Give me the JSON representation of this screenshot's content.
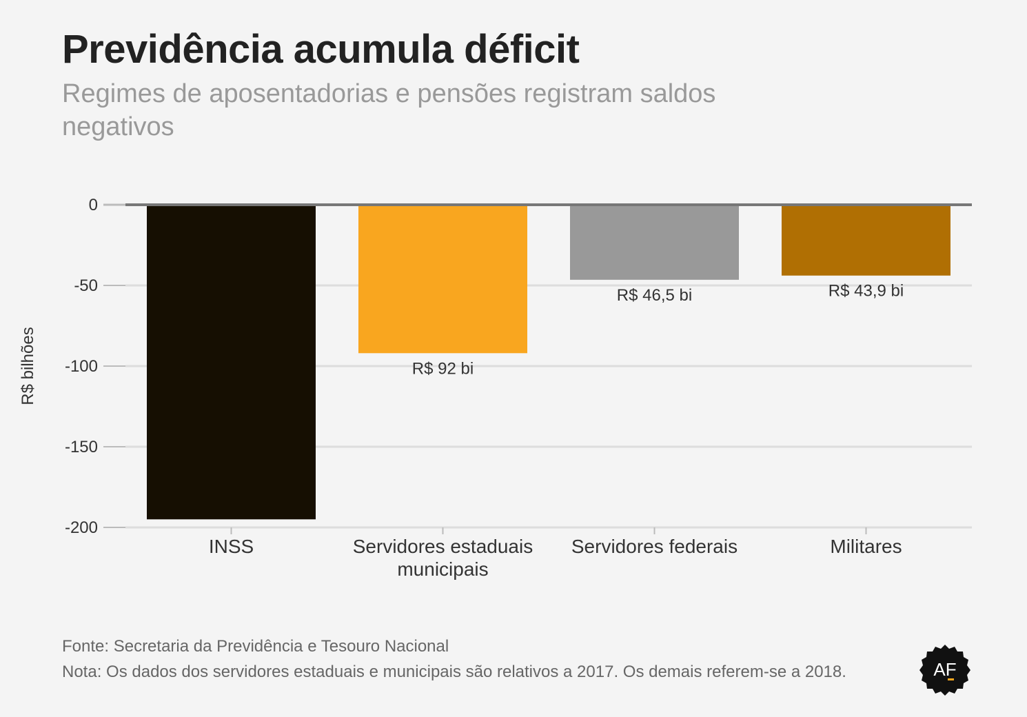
{
  "title": "Previdência acumula déficit",
  "subtitle": "Regimes de aposentadorias e pensões registram saldos negativos",
  "source": "Fonte: Secretaria da Previdência e Tesouro Nacional",
  "note": "Nota: Os dados dos servidores estaduais e municipais são relativos a 2017. Os demais referem-se a 2018.",
  "logo": {
    "icon": "af-logo-badge",
    "text": "AF"
  },
  "chart_data": {
    "type": "bar",
    "ylabel": "R$ bilhões",
    "ylim": [
      -200,
      0
    ],
    "yticks": [
      0,
      -50,
      -100,
      -150,
      -200
    ],
    "grid": true,
    "categories": [
      [
        "INSS"
      ],
      [
        "Servidores estaduais",
        "municipais"
      ],
      [
        "Servidores federais"
      ],
      [
        "Militares"
      ]
    ],
    "values": [
      -195,
      -92,
      -46.5,
      -43.9
    ],
    "data_labels": [
      "",
      "R$ 92 bi",
      "R$ 46,5 bi",
      "R$ 43,9 bi"
    ],
    "colors": [
      "#160f02",
      "#f9a61f",
      "#999999",
      "#b06f03"
    ]
  }
}
